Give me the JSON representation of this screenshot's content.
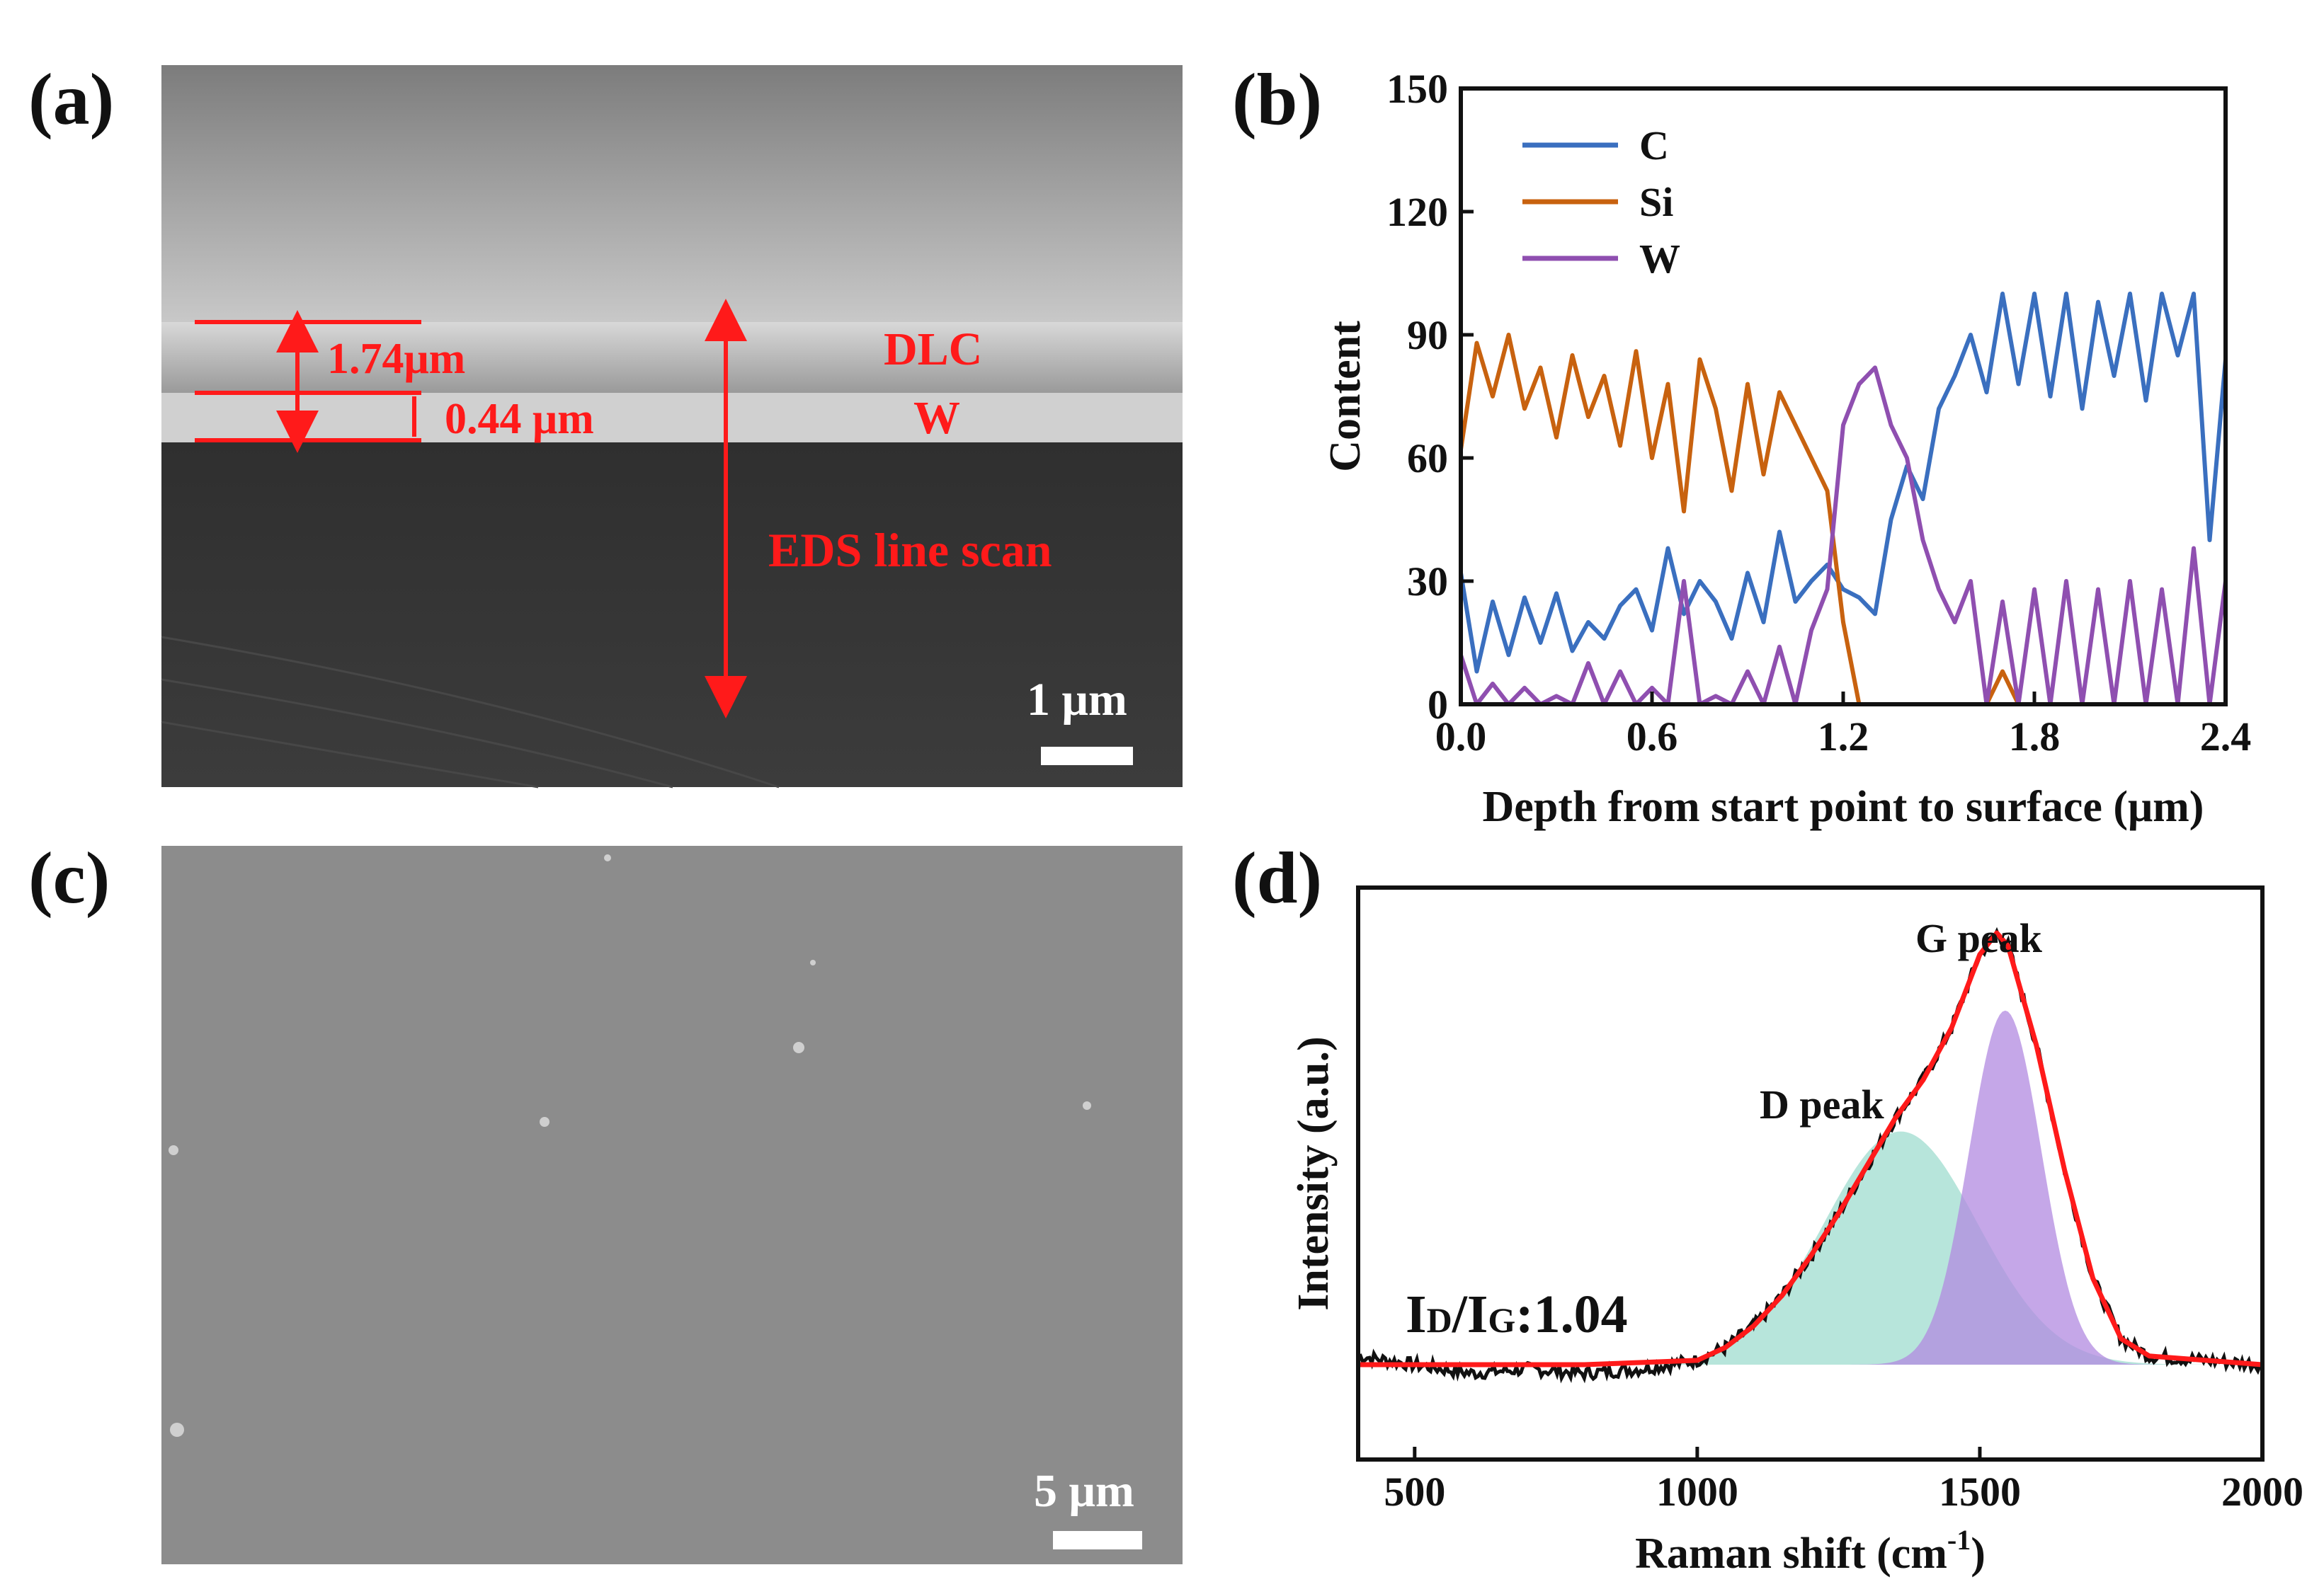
{
  "panels": {
    "a": {
      "label": "(a)",
      "thickness_total": "1.74μm",
      "thickness_w": "0.44 μm",
      "layer_dlc": "DLC",
      "layer_w": "W",
      "eds": "EDS  line scan",
      "scalebar": "1 μm"
    },
    "b": {
      "label": "(b)"
    },
    "c": {
      "label": "(c)",
      "scalebar": "5 μm"
    },
    "d": {
      "label": "(d)",
      "g_peak": "G peak",
      "d_peak": "D peak",
      "ratio": "1.04",
      "ratio_prefix_main": "I",
      "ratio_sub_d": "D",
      "ratio_sub_g": "G",
      "ratio_colon": ":"
    }
  },
  "colors": {
    "C": "#3a6fbf",
    "Si": "#c8620f",
    "W": "#8f4fb0",
    "fit": "#ff1a1a",
    "d_fill": "#9fdccf",
    "g_fill": "#b18ae0"
  },
  "chart_data": [
    {
      "type": "line",
      "xlabel": "Depth from start point to surface (μm)",
      "ylabel": "Content",
      "xlim": [
        0,
        2.4
      ],
      "ylim": [
        0,
        150
      ],
      "xticks": [
        "0.0",
        "0.6",
        "1.2",
        "1.8",
        "2.4"
      ],
      "yticks": [
        "0",
        "30",
        "60",
        "90",
        "120",
        "150"
      ],
      "legend_position": "top-left",
      "series": [
        {
          "name": "C",
          "x": [
            0,
            0.05,
            0.1,
            0.15,
            0.2,
            0.25,
            0.3,
            0.35,
            0.4,
            0.45,
            0.5,
            0.55,
            0.6,
            0.65,
            0.7,
            0.75,
            0.8,
            0.85,
            0.9,
            0.95,
            1.0,
            1.05,
            1.1,
            1.15,
            1.2,
            1.25,
            1.3,
            1.35,
            1.4,
            1.45,
            1.5,
            1.55,
            1.6,
            1.65,
            1.7,
            1.75,
            1.8,
            1.85,
            1.9,
            1.95,
            2.0,
            2.05,
            2.1,
            2.15,
            2.2,
            2.25,
            2.3,
            2.35,
            2.4
          ],
          "y": [
            32,
            8,
            25,
            12,
            26,
            15,
            27,
            13,
            20,
            16,
            24,
            28,
            18,
            38,
            22,
            30,
            25,
            16,
            32,
            20,
            42,
            25,
            30,
            34,
            28,
            26,
            22,
            45,
            58,
            50,
            72,
            80,
            90,
            76,
            100,
            78,
            100,
            75,
            100,
            72,
            98,
            80,
            100,
            74,
            100,
            85,
            100,
            40,
            84
          ]
        },
        {
          "name": "Si",
          "x": [
            0,
            0.05,
            0.1,
            0.15,
            0.2,
            0.25,
            0.3,
            0.35,
            0.4,
            0.45,
            0.5,
            0.55,
            0.6,
            0.65,
            0.7,
            0.75,
            0.8,
            0.85,
            0.9,
            0.95,
            1.0,
            1.05,
            1.1,
            1.15,
            1.2,
            1.25,
            1.65,
            1.7,
            1.75
          ],
          "y": [
            62,
            88,
            75,
            90,
            72,
            82,
            65,
            85,
            70,
            80,
            63,
            86,
            60,
            78,
            47,
            84,
            72,
            52,
            78,
            56,
            76,
            68,
            60,
            52,
            20,
            0,
            0,
            8,
            0
          ]
        },
        {
          "name": "W",
          "x": [
            0,
            0.05,
            0.1,
            0.15,
            0.2,
            0.25,
            0.3,
            0.35,
            0.4,
            0.45,
            0.5,
            0.55,
            0.6,
            0.65,
            0.7,
            0.75,
            0.8,
            0.85,
            0.9,
            0.95,
            1.0,
            1.05,
            1.1,
            1.15,
            1.2,
            1.25,
            1.3,
            1.35,
            1.4,
            1.45,
            1.5,
            1.55,
            1.6,
            1.65,
            1.7,
            1.75,
            1.8,
            1.85,
            1.9,
            1.95,
            2.0,
            2.05,
            2.1,
            2.15,
            2.2,
            2.25,
            2.3,
            2.35,
            2.4
          ],
          "y": [
            12,
            0,
            5,
            0,
            4,
            0,
            2,
            0,
            10,
            0,
            8,
            0,
            4,
            0,
            30,
            0,
            2,
            0,
            8,
            0,
            14,
            0,
            18,
            28,
            68,
            78,
            82,
            68,
            60,
            40,
            28,
            20,
            30,
            0,
            25,
            0,
            28,
            0,
            30,
            0,
            28,
            0,
            30,
            0,
            28,
            0,
            38,
            0,
            30
          ]
        }
      ]
    },
    {
      "type": "line",
      "xlabel": "Raman shift (cm-1)",
      "ylabel": "Intensity (a.u.)",
      "xlim": [
        400,
        2000
      ],
      "xticks": [
        "500",
        "1000",
        "1500",
        "2000"
      ],
      "y_ticks_shown": false,
      "series": [
        {
          "name": "measured",
          "x": [
            400,
            500,
            600,
            700,
            800,
            900,
            1000,
            1050,
            1100,
            1150,
            1200,
            1250,
            1300,
            1350,
            1400,
            1450,
            1500,
            1530,
            1550,
            1600,
            1650,
            1700,
            1750,
            1800,
            1900,
            2000
          ],
          "y": [
            0.02,
            0.0,
            -0.02,
            -0.01,
            -0.02,
            -0.01,
            0.01,
            0.04,
            0.09,
            0.16,
            0.25,
            0.35,
            0.46,
            0.57,
            0.66,
            0.78,
            0.95,
            1.0,
            0.97,
            0.74,
            0.45,
            0.2,
            0.06,
            0.02,
            0.01,
            0.0
          ]
        },
        {
          "name": "fit",
          "x": [
            400,
            600,
            800,
            1000,
            1050,
            1100,
            1150,
            1200,
            1250,
            1300,
            1350,
            1400,
            1450,
            1500,
            1530,
            1550,
            1600,
            1650,
            1700,
            1750,
            1800,
            2000
          ],
          "y": [
            0,
            0,
            0,
            0.01,
            0.04,
            0.09,
            0.16,
            0.25,
            0.35,
            0.46,
            0.57,
            0.66,
            0.78,
            0.95,
            1.0,
            0.97,
            0.74,
            0.45,
            0.2,
            0.06,
            0.02,
            0.0
          ]
        },
        {
          "name": "D peak",
          "center": 1360,
          "fwhm": 320,
          "height": 0.54
        },
        {
          "name": "G peak",
          "center": 1545,
          "fwhm": 150,
          "height": 0.82
        }
      ]
    }
  ]
}
